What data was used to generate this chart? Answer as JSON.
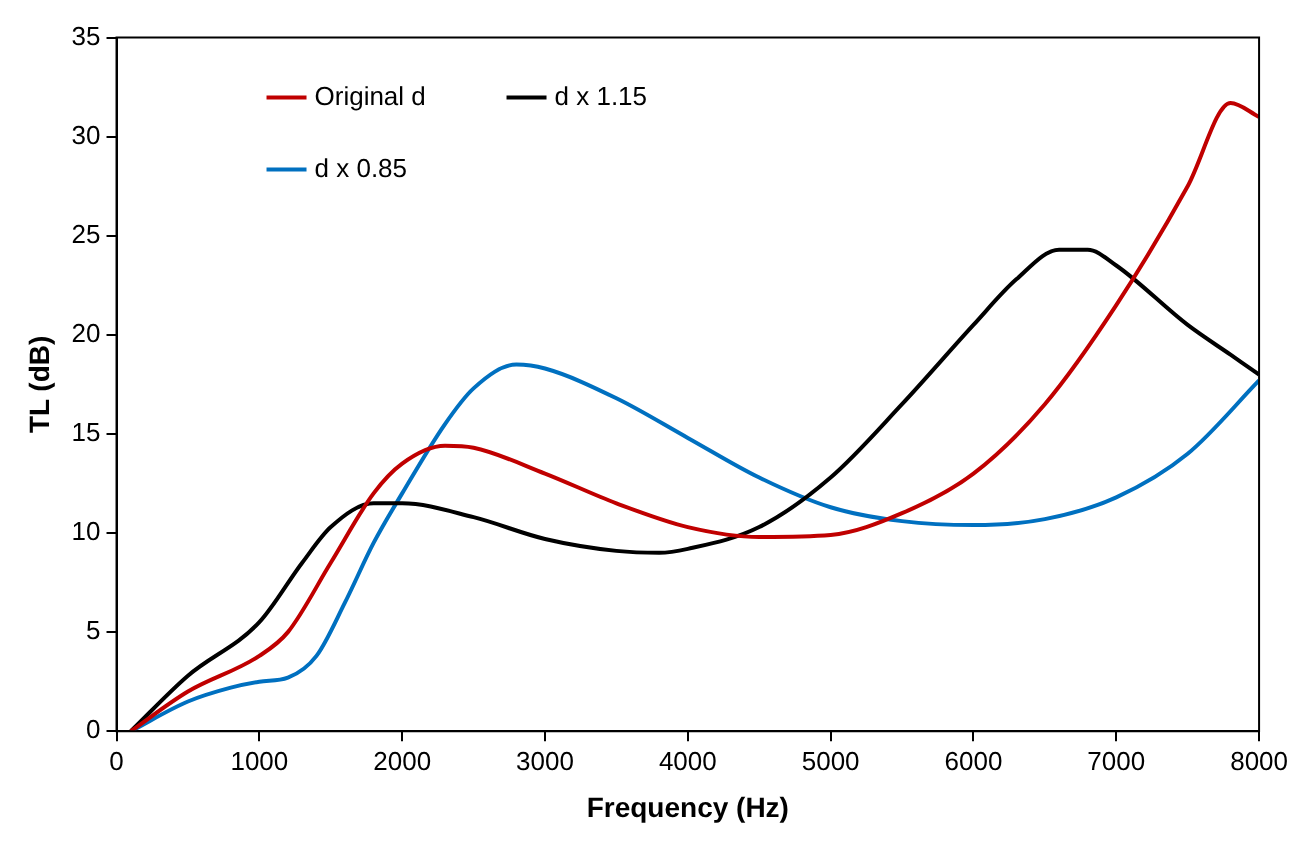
{
  "chart_data": {
    "type": "line",
    "xlabel": "Frequency (Hz)",
    "ylabel": "TL (dB)",
    "xlim": [
      0,
      8000
    ],
    "xticks": [
      0,
      1000,
      2000,
      3000,
      4000,
      5000,
      6000,
      7000,
      8000
    ],
    "ylim": [
      0,
      35
    ],
    "yticks": [
      0,
      5,
      10,
      15,
      20,
      25,
      30,
      35
    ],
    "grid": false,
    "legend": "top left",
    "marker": "none",
    "line_style": "solid",
    "series": [
      {
        "name": "Original d",
        "color": "#c00000",
        "x": [
          100,
          500,
          1000,
          1200,
          1500,
          1800,
          2000,
          2300,
          2500,
          3000,
          3500,
          4000,
          4500,
          5000,
          5500,
          6000,
          6500,
          7000,
          7500,
          7800,
          8000
        ],
        "values": [
          0,
          2,
          3.8,
          5,
          8.5,
          12,
          13.5,
          14.4,
          14.3,
          13,
          11.5,
          10.3,
          9.8,
          9.9,
          11,
          13,
          16.5,
          21.5,
          27.5,
          31.7,
          31
        ]
      },
      {
        "name": "d x 1.15",
        "color": "#000000",
        "x": [
          100,
          500,
          1000,
          1300,
          1500,
          1800,
          2000,
          2500,
          3000,
          3500,
          3800,
          4000,
          4500,
          5000,
          5500,
          6000,
          6300,
          6600,
          6800,
          7000,
          7500,
          7800,
          8000
        ],
        "values": [
          0,
          2.8,
          5.5,
          8.5,
          10.3,
          11.5,
          11.5,
          10.8,
          9.7,
          9.1,
          9,
          9.2,
          10.3,
          12.8,
          16.5,
          20.5,
          22.8,
          24.3,
          24.3,
          23.5,
          20.5,
          19,
          18
        ]
      },
      {
        "name": "d x 0.85",
        "color": "#0070c0",
        "x": [
          100,
          500,
          800,
          1000,
          1200,
          1400,
          1600,
          1800,
          2000,
          2300,
          2500,
          2800,
          3000,
          3500,
          4000,
          4500,
          5000,
          5500,
          6000,
          6500,
          7000,
          7500,
          8000
        ],
        "values": [
          0,
          1.5,
          2.2,
          2.5,
          2.7,
          3.8,
          6.5,
          9.5,
          12,
          15.5,
          17.3,
          18.5,
          18.3,
          16.8,
          14.8,
          12.8,
          11.3,
          10.6,
          10.4,
          10.7,
          11.8,
          14,
          17.7
        ]
      }
    ]
  }
}
